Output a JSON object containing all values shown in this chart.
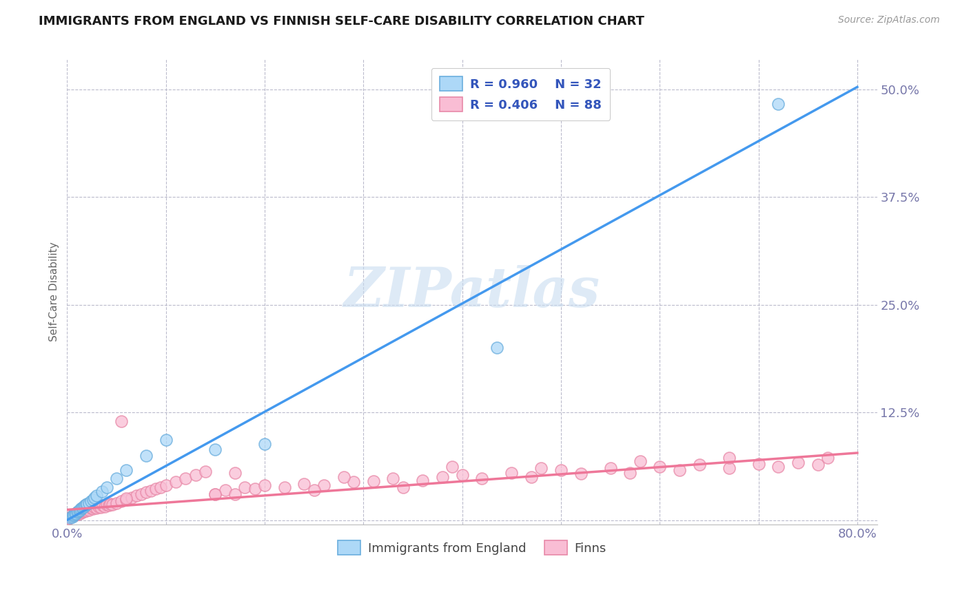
{
  "title": "IMMIGRANTS FROM ENGLAND VS FINNISH SELF-CARE DISABILITY CORRELATION CHART",
  "source": "Source: ZipAtlas.com",
  "ylabel": "Self-Care Disability",
  "watermark": "ZIPatlas",
  "xlim": [
    0.0,
    0.82
  ],
  "ylim": [
    -0.005,
    0.535
  ],
  "xticks": [
    0.0,
    0.1,
    0.2,
    0.3,
    0.4,
    0.5,
    0.6,
    0.7,
    0.8
  ],
  "xticklabels": [
    "0.0%",
    "",
    "",
    "",
    "",
    "",
    "",
    "",
    "80.0%"
  ],
  "ytick_positions": [
    0.0,
    0.125,
    0.25,
    0.375,
    0.5
  ],
  "ytick_labels": [
    "",
    "12.5%",
    "25.0%",
    "37.5%",
    "50.0%"
  ],
  "legend_r1": "R = 0.960",
  "legend_n1": "N = 32",
  "legend_r2": "R = 0.406",
  "legend_n2": "N = 88",
  "blue_color": "#ADD8F7",
  "pink_color": "#F9BDD4",
  "blue_edge_color": "#6AAEDE",
  "pink_edge_color": "#E889A8",
  "blue_line_color": "#4499EE",
  "pink_line_color": "#EE7799",
  "title_color": "#1a1a1a",
  "axis_color": "#7777AA",
  "legend_text_color": "#3355BB",
  "grid_color": "#BBBBCC",
  "blue_line_x0": 0.0,
  "blue_line_y0": 0.0,
  "blue_line_x1": 0.8,
  "blue_line_y1": 0.503,
  "pink_line_x0": 0.0,
  "pink_line_y0": 0.012,
  "pink_line_x1": 0.8,
  "pink_line_y1": 0.078,
  "blue_scatter_x": [
    0.003,
    0.005,
    0.006,
    0.007,
    0.008,
    0.009,
    0.01,
    0.011,
    0.012,
    0.013,
    0.014,
    0.015,
    0.016,
    0.017,
    0.018,
    0.019,
    0.02,
    0.022,
    0.024,
    0.026,
    0.028,
    0.03,
    0.035,
    0.04,
    0.05,
    0.06,
    0.08,
    0.1,
    0.15,
    0.2,
    0.435,
    0.72
  ],
  "blue_scatter_y": [
    0.003,
    0.004,
    0.005,
    0.006,
    0.007,
    0.008,
    0.009,
    0.01,
    0.011,
    0.012,
    0.013,
    0.014,
    0.015,
    0.016,
    0.017,
    0.018,
    0.019,
    0.02,
    0.022,
    0.024,
    0.026,
    0.028,
    0.033,
    0.038,
    0.048,
    0.058,
    0.075,
    0.093,
    0.082,
    0.088,
    0.2,
    0.483
  ],
  "pink_scatter_x": [
    0.002,
    0.004,
    0.005,
    0.006,
    0.007,
    0.008,
    0.009,
    0.01,
    0.011,
    0.012,
    0.013,
    0.014,
    0.015,
    0.016,
    0.017,
    0.018,
    0.019,
    0.02,
    0.022,
    0.024,
    0.026,
    0.028,
    0.03,
    0.032,
    0.034,
    0.036,
    0.038,
    0.04,
    0.042,
    0.044,
    0.046,
    0.05,
    0.055,
    0.06,
    0.065,
    0.07,
    0.075,
    0.08,
    0.085,
    0.09,
    0.095,
    0.1,
    0.11,
    0.12,
    0.13,
    0.14,
    0.15,
    0.16,
    0.17,
    0.18,
    0.19,
    0.2,
    0.22,
    0.24,
    0.26,
    0.29,
    0.31,
    0.33,
    0.36,
    0.38,
    0.4,
    0.42,
    0.45,
    0.47,
    0.5,
    0.52,
    0.55,
    0.57,
    0.6,
    0.62,
    0.64,
    0.67,
    0.7,
    0.72,
    0.74,
    0.76,
    0.06,
    0.15,
    0.25,
    0.34,
    0.055,
    0.17,
    0.28,
    0.39,
    0.48,
    0.58,
    0.67,
    0.77
  ],
  "pink_scatter_y": [
    0.002,
    0.004,
    0.005,
    0.006,
    0.005,
    0.007,
    0.006,
    0.008,
    0.007,
    0.009,
    0.008,
    0.01,
    0.009,
    0.011,
    0.01,
    0.012,
    0.011,
    0.013,
    0.012,
    0.014,
    0.013,
    0.015,
    0.014,
    0.016,
    0.015,
    0.017,
    0.016,
    0.018,
    0.017,
    0.019,
    0.018,
    0.02,
    0.022,
    0.024,
    0.026,
    0.028,
    0.03,
    0.032,
    0.034,
    0.036,
    0.038,
    0.04,
    0.044,
    0.048,
    0.052,
    0.056,
    0.03,
    0.035,
    0.03,
    0.038,
    0.036,
    0.04,
    0.038,
    0.042,
    0.04,
    0.044,
    0.045,
    0.048,
    0.046,
    0.05,
    0.052,
    0.048,
    0.055,
    0.05,
    0.058,
    0.054,
    0.06,
    0.055,
    0.062,
    0.058,
    0.064,
    0.06,
    0.065,
    0.062,
    0.067,
    0.064,
    0.025,
    0.03,
    0.035,
    0.038,
    0.115,
    0.055,
    0.05,
    0.062,
    0.06,
    0.068,
    0.072,
    0.072
  ]
}
